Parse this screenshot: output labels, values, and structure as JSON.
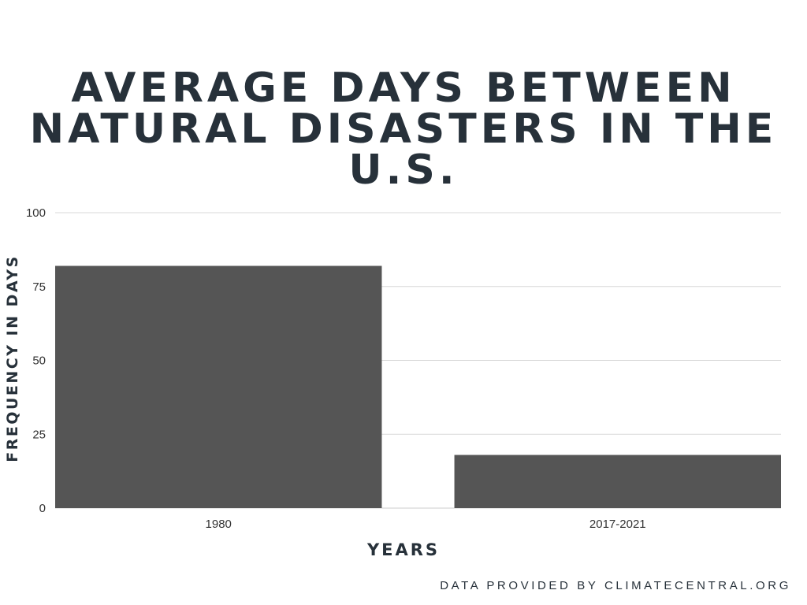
{
  "chart_data": {
    "type": "bar",
    "title_lines": [
      "AVERAGE DAYS BETWEEN",
      "NATURAL DISASTERS IN THE",
      "U.S."
    ],
    "categories": [
      "1980",
      "2017-2021"
    ],
    "values": [
      82,
      18
    ],
    "xlabel": "YEARS",
    "ylabel": "FREQUENCY IN DAYS",
    "ylim": [
      0,
      100
    ],
    "yticks": [
      0,
      25,
      50,
      75,
      100
    ],
    "grid": true,
    "bar_color": "#555555",
    "grid_color": "#d9d9d9"
  },
  "footer": {
    "source": "DATA PROVIDED BY CLIMATECENTRAL.ORG"
  }
}
